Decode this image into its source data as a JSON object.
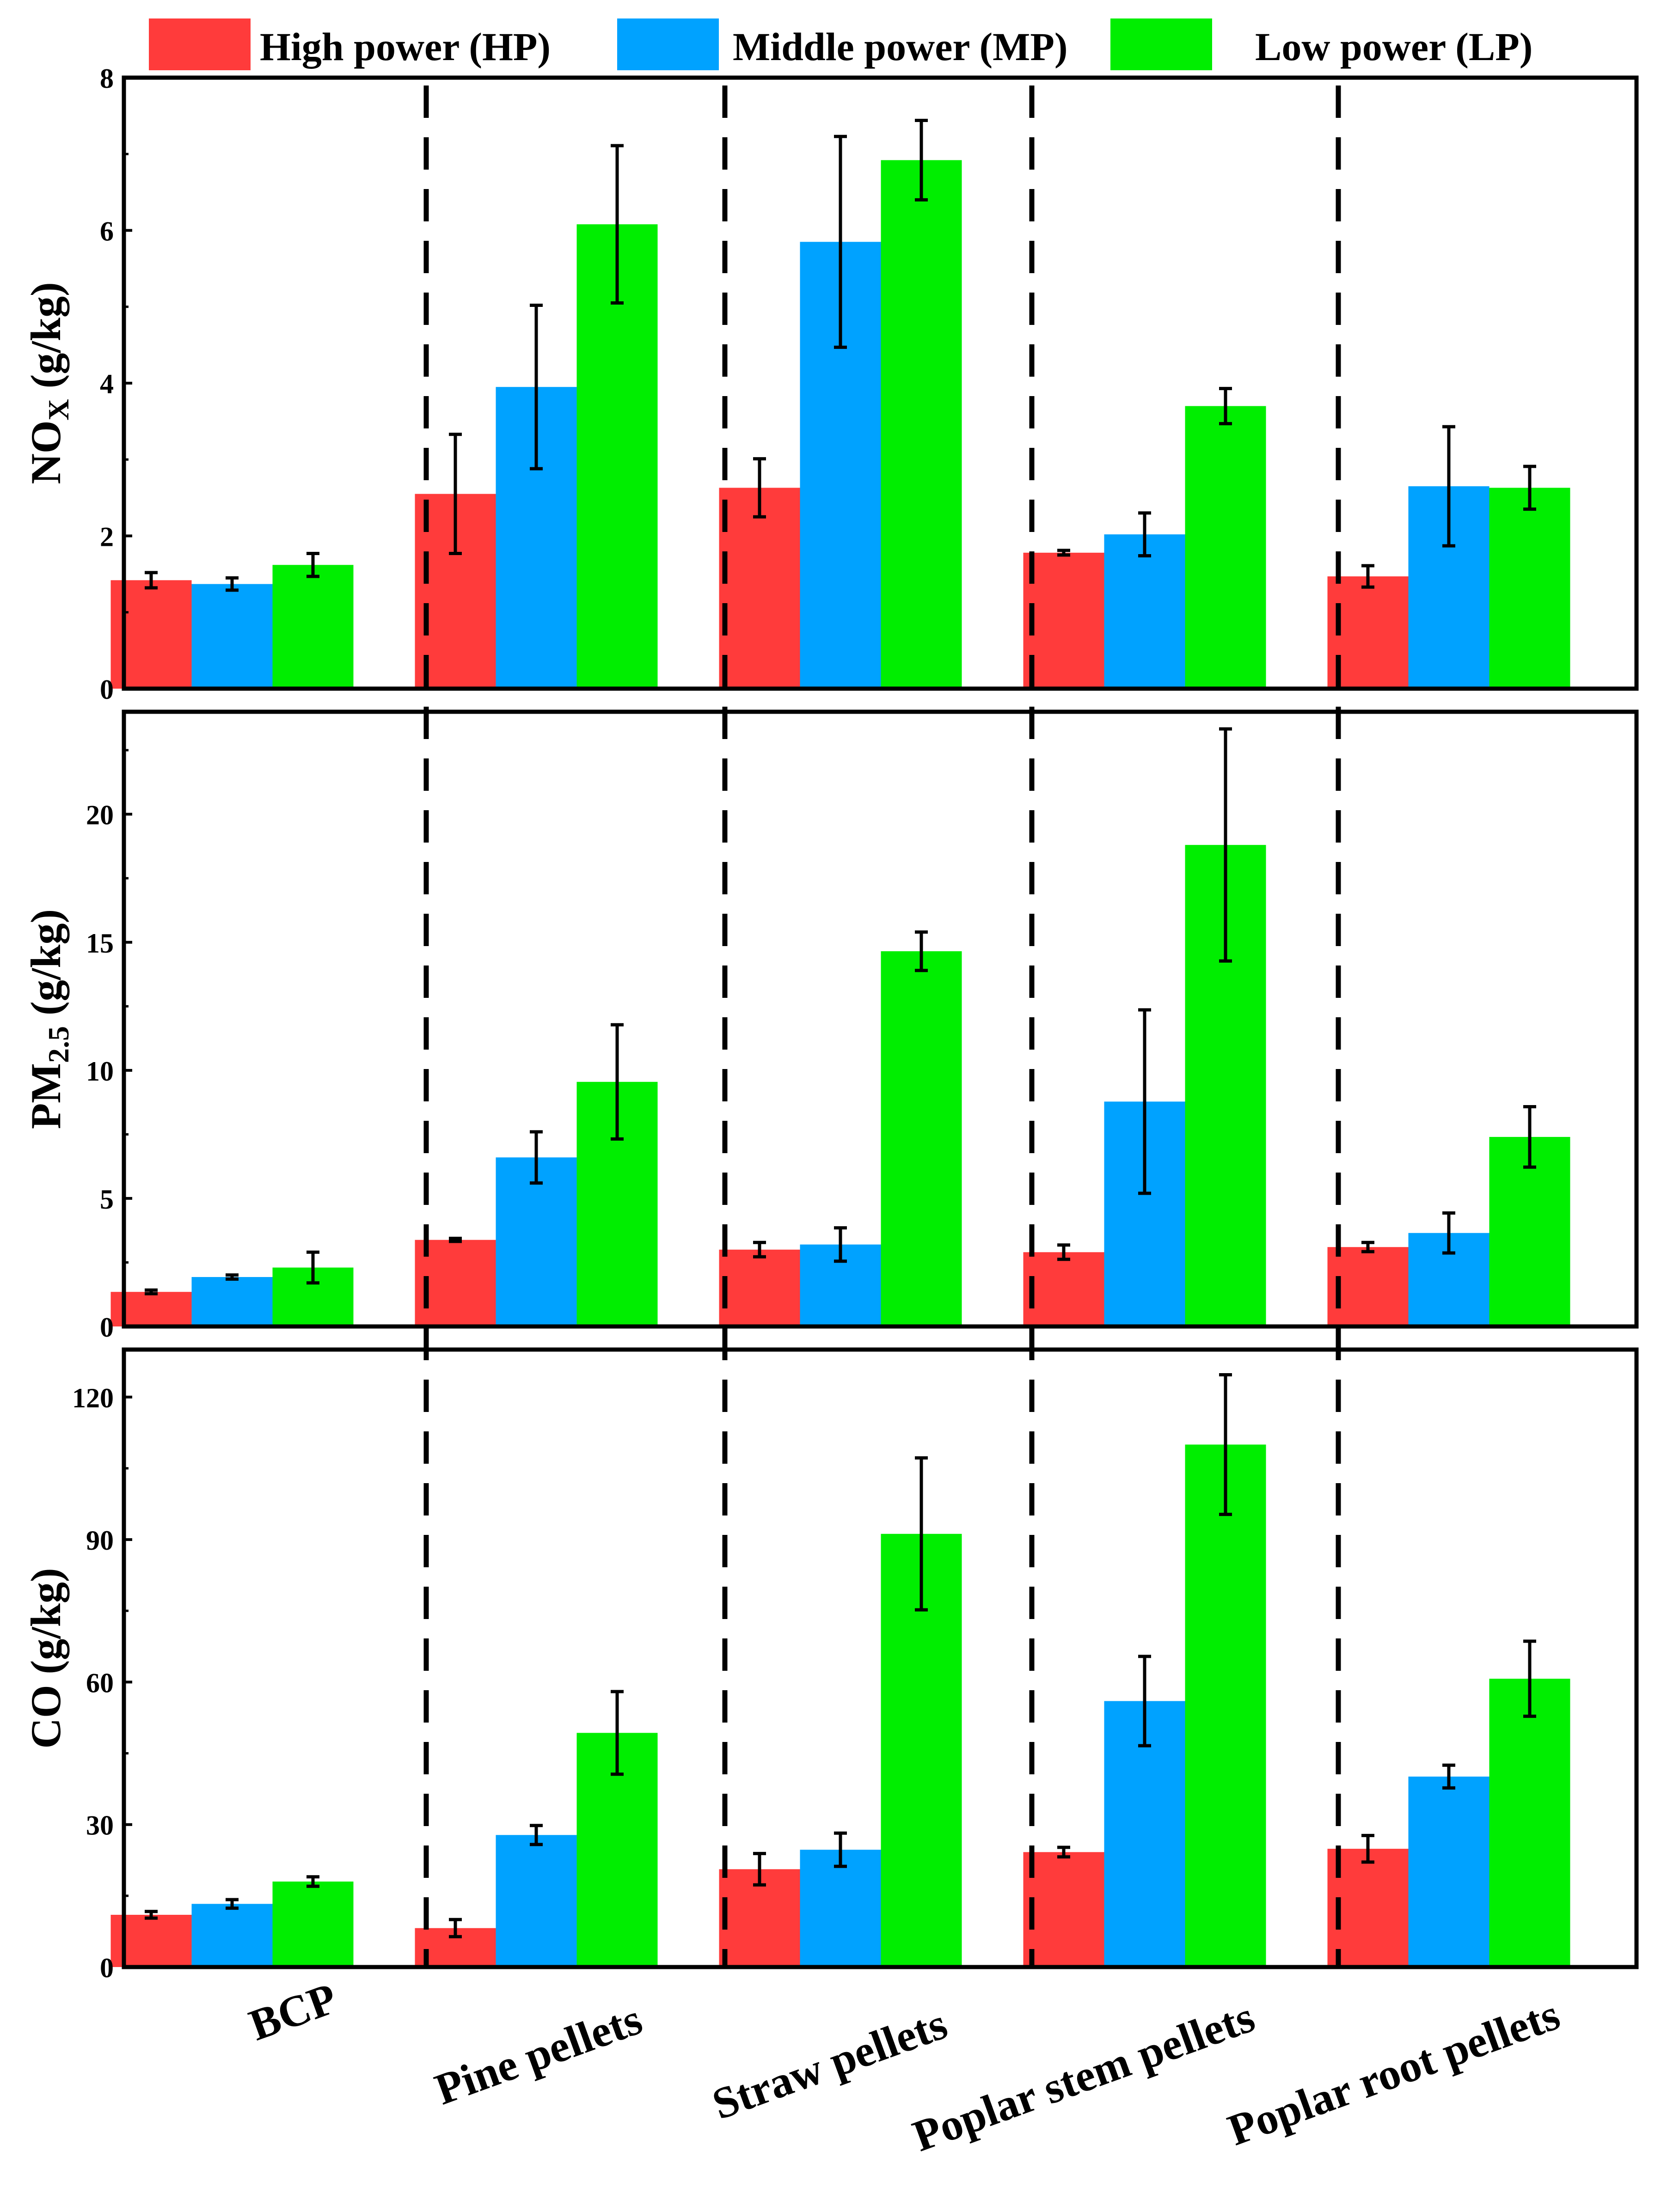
{
  "legend": {
    "items": [
      {
        "label": "High power (HP)",
        "color": "#ff3b3b"
      },
      {
        "label": "Middle power (MP)",
        "color": "#00a2ff"
      },
      {
        "label": "Low power (LP)",
        "color": "#00ee00"
      }
    ]
  },
  "chart_data": [
    {
      "type": "bar",
      "ylabel": "NOX (g/kg)",
      "ylabel_main": "NO",
      "ylabel_sub": "X",
      "ylabel_unit": " (g/kg)",
      "ylim": [
        0,
        8
      ],
      "yticks": [
        0,
        2,
        4,
        6,
        8
      ],
      "categories": [
        "BCP",
        "Pine pellets",
        "Straw pellets",
        "Poplar stem pellets",
        "Poplar root pellets"
      ],
      "series": [
        {
          "name": "High power (HP)",
          "values": [
            1.42,
            2.55,
            2.63,
            1.78,
            1.47
          ],
          "errors": [
            0.1,
            0.78,
            0.38,
            0.03,
            0.14
          ]
        },
        {
          "name": "Middle power (MP)",
          "values": [
            1.37,
            3.95,
            5.85,
            2.02,
            2.65
          ],
          "errors": [
            0.08,
            1.07,
            1.38,
            0.28,
            0.78
          ]
        },
        {
          "name": "Low power (LP)",
          "values": [
            1.62,
            6.08,
            6.92,
            3.7,
            2.63
          ],
          "errors": [
            0.15,
            1.03,
            0.52,
            0.23,
            0.28
          ]
        }
      ]
    },
    {
      "type": "bar",
      "ylabel": "PM2.5 (g/kg)",
      "ylabel_main": "PM",
      "ylabel_sub": "2.5",
      "ylabel_unit": " (g/kg)",
      "ylim": [
        0,
        24
      ],
      "yticks": [
        0,
        5,
        10,
        15,
        20
      ],
      "categories": [
        "BCP",
        "Pine pellets",
        "Straw pellets",
        "Poplar stem pellets",
        "Poplar root pellets"
      ],
      "series": [
        {
          "name": "High power (HP)",
          "values": [
            1.35,
            3.38,
            3.0,
            2.9,
            3.1
          ],
          "errors": [
            0.07,
            0.06,
            0.28,
            0.28,
            0.18
          ]
        },
        {
          "name": "Middle power (MP)",
          "values": [
            1.93,
            6.6,
            3.2,
            8.78,
            3.65
          ],
          "errors": [
            0.08,
            1.0,
            0.65,
            3.58,
            0.78
          ]
        },
        {
          "name": "Low power (LP)",
          "values": [
            2.3,
            9.55,
            14.65,
            18.8,
            7.4
          ],
          "errors": [
            0.6,
            2.23,
            0.75,
            4.53,
            1.18
          ]
        }
      ]
    },
    {
      "type": "bar",
      "ylabel": "CO (g/kg)",
      "ylabel_main": "CO",
      "ylabel_sub": "",
      "ylabel_unit": " (g/kg)",
      "ylim": [
        0,
        130
      ],
      "yticks": [
        0,
        30,
        60,
        90,
        120
      ],
      "xlabel": "",
      "categories": [
        "BCP",
        "Pine pellets",
        "Straw pellets",
        "Poplar stem pellets",
        "Poplar root pellets"
      ],
      "series": [
        {
          "name": "High power (HP)",
          "values": [
            11.0,
            8.2,
            20.6,
            24.2,
            24.9
          ],
          "errors": [
            0.7,
            1.8,
            3.3,
            1.0,
            2.8
          ]
        },
        {
          "name": "Middle power (MP)",
          "values": [
            13.3,
            27.8,
            24.7,
            56.0,
            40.1
          ],
          "errors": [
            0.9,
            2.0,
            3.5,
            9.4,
            2.4
          ]
        },
        {
          "name": "Low power (LP)",
          "values": [
            18.0,
            49.3,
            91.2,
            110.0,
            60.7
          ],
          "errors": [
            1.0,
            8.7,
            16.0,
            14.7,
            7.9
          ]
        }
      ]
    }
  ]
}
